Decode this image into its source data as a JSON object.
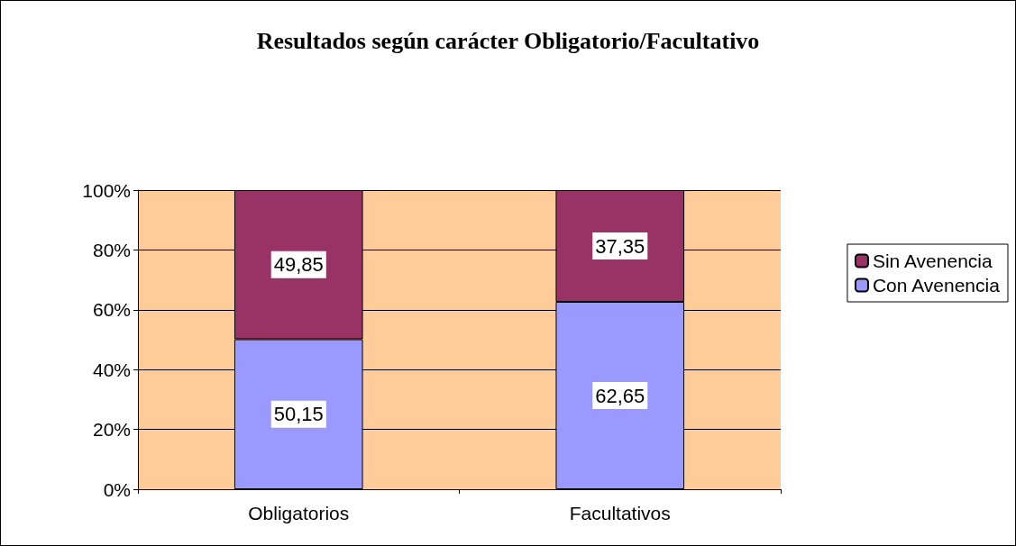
{
  "chart_data": {
    "type": "bar",
    "title": "Resultados según carácter Obligatorio/Facultativo",
    "categories": [
      "Obligatorios",
      "Facultativos"
    ],
    "stacked": true,
    "series": [
      {
        "name": "Con Avenencia",
        "color": "#9999ff",
        "values": [
          50.15,
          62.65
        ],
        "value_labels": [
          "50,15",
          "62,65"
        ]
      },
      {
        "name": "Sin Avenencia",
        "color": "#993366",
        "values": [
          49.85,
          37.35
        ],
        "value_labels": [
          "49,85",
          "37,35"
        ]
      }
    ],
    "ylim": [
      0,
      100
    ],
    "yticks": [
      {
        "value": 0,
        "label": "0%"
      },
      {
        "value": 20,
        "label": "20%"
      },
      {
        "value": 40,
        "label": "40%"
      },
      {
        "value": 60,
        "label": "60%"
      },
      {
        "value": 80,
        "label": "80%"
      },
      {
        "value": 100,
        "label": "100%"
      }
    ],
    "grid": "y",
    "legend": "right"
  }
}
